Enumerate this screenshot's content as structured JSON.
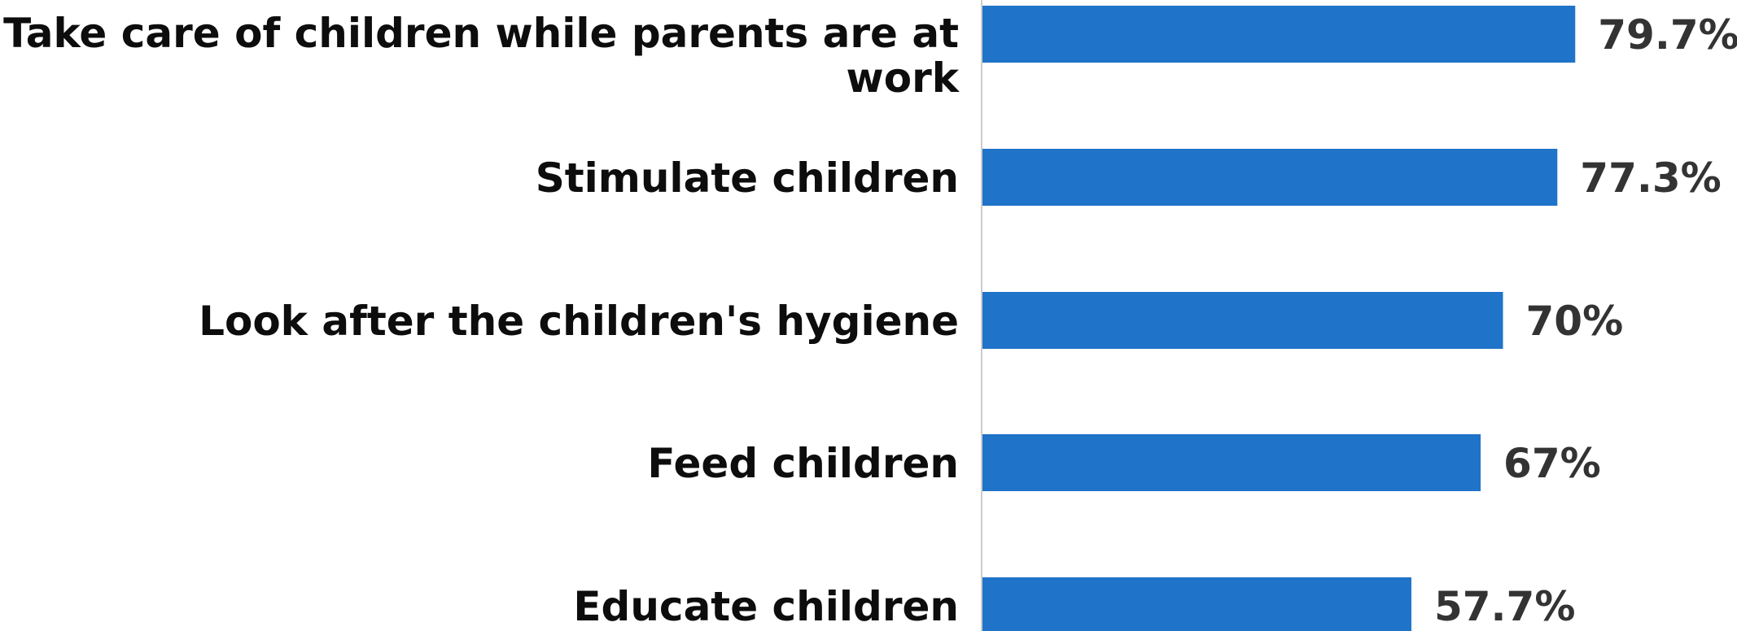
{
  "chart_data": {
    "type": "bar",
    "orientation": "horizontal",
    "categories": [
      [
        "Take care of children while parents are at",
        "work"
      ],
      [
        "Stimulate children"
      ],
      [
        "Look after the children's hygiene"
      ],
      [
        "Feed children"
      ],
      [
        "Educate children"
      ]
    ],
    "values": [
      79.7,
      77.3,
      70,
      67,
      57.7
    ],
    "value_labels": [
      "79.7%",
      "77.3%",
      "70%",
      "67%",
      "57.7%"
    ],
    "unit": "%",
    "bar_color": "#1f73c8",
    "axis_line_color": "#cccccc",
    "grid": false,
    "legend": "none"
  }
}
